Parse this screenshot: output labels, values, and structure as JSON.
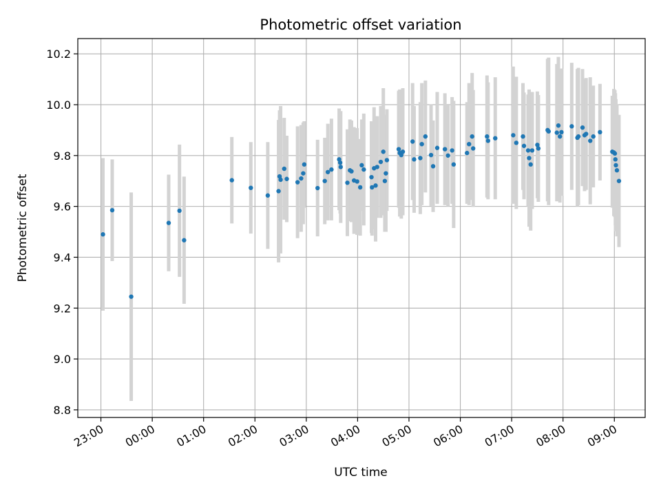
{
  "chart_data": {
    "type": "scatter",
    "title": "Photometric offset variation",
    "xlabel": "UTC time",
    "ylabel": "Photometric offset",
    "x_unit": "hours after 23:00 UTC",
    "xlim": [
      -0.45,
      10.6
    ],
    "ylim": [
      8.77,
      10.26
    ],
    "yticks": [
      8.8,
      9.0,
      9.2,
      9.4,
      9.6,
      9.8,
      10.0,
      10.2
    ],
    "ytick_labels": [
      "8.8",
      "9.0",
      "9.2",
      "9.4",
      "9.6",
      "9.8",
      "10.0",
      "10.2"
    ],
    "xticks": [
      0,
      1,
      2,
      3,
      4,
      5,
      6,
      7,
      8,
      9,
      10
    ],
    "xtick_labels": [
      "23:00",
      "00:00",
      "01:00",
      "02:00",
      "03:00",
      "04:00",
      "05:00",
      "06:00",
      "07:00",
      "08:00",
      "09:00"
    ],
    "grid": true,
    "marker_color": "#1f77b4",
    "errorbar_color": "#d3d3d3",
    "points": [
      [
        0.04,
        9.49,
        0.3
      ],
      [
        0.22,
        9.585,
        0.2
      ],
      [
        0.59,
        9.245,
        0.41
      ],
      [
        1.32,
        9.535,
        0.19
      ],
      [
        1.53,
        9.583,
        0.26
      ],
      [
        1.62,
        9.467,
        0.25
      ],
      [
        2.55,
        9.703,
        0.17
      ],
      [
        2.92,
        9.673,
        0.18
      ],
      [
        3.25,
        9.643,
        0.21
      ],
      [
        3.46,
        9.66,
        0.28
      ],
      [
        3.48,
        9.718,
        0.26
      ],
      [
        3.5,
        9.705,
        0.29
      ],
      [
        3.57,
        9.748,
        0.2
      ],
      [
        3.62,
        9.708,
        0.17
      ],
      [
        3.83,
        9.695,
        0.22
      ],
      [
        3.9,
        9.71,
        0.21
      ],
      [
        3.94,
        9.73,
        0.2
      ],
      [
        3.96,
        9.765,
        0.17
      ],
      [
        4.22,
        9.672,
        0.19
      ],
      [
        4.36,
        9.7,
        0.17
      ],
      [
        4.42,
        9.735,
        0.19
      ],
      [
        4.49,
        9.745,
        0.2
      ],
      [
        4.64,
        9.785,
        0.2
      ],
      [
        4.66,
        9.772,
        0.2
      ],
      [
        4.67,
        9.755,
        0.22
      ],
      [
        4.8,
        9.693,
        0.21
      ],
      [
        4.85,
        9.742,
        0.2
      ],
      [
        4.88,
        9.738,
        0.2
      ],
      [
        4.93,
        9.702,
        0.21
      ],
      [
        4.99,
        9.698,
        0.21
      ],
      [
        5.05,
        9.675,
        0.19
      ],
      [
        5.08,
        9.762,
        0.18
      ],
      [
        5.12,
        9.745,
        0.22
      ],
      [
        5.27,
        9.715,
        0.22
      ],
      [
        5.28,
        9.675,
        0.19
      ],
      [
        5.32,
        9.75,
        0.24
      ],
      [
        5.35,
        9.682,
        0.22
      ],
      [
        5.38,
        9.755,
        0.2
      ],
      [
        5.45,
        9.775,
        0.22
      ],
      [
        5.5,
        9.815,
        0.25
      ],
      [
        5.53,
        9.7,
        0.2
      ],
      [
        5.55,
        9.73,
        0.23
      ],
      [
        5.57,
        9.782,
        0.2
      ],
      [
        5.8,
        9.825,
        0.23
      ],
      [
        5.82,
        9.81,
        0.25
      ],
      [
        5.85,
        9.802,
        0.25
      ],
      [
        5.88,
        9.815,
        0.25
      ],
      [
        6.07,
        9.855,
        0.23
      ],
      [
        6.1,
        9.785,
        0.21
      ],
      [
        6.22,
        9.79,
        0.22
      ],
      [
        6.25,
        9.845,
        0.24
      ],
      [
        6.32,
        9.875,
        0.22
      ],
      [
        6.43,
        9.802,
        0.2
      ],
      [
        6.47,
        9.758,
        0.18
      ],
      [
        6.55,
        9.83,
        0.22
      ],
      [
        6.7,
        9.825,
        0.22
      ],
      [
        6.76,
        9.8,
        0.2
      ],
      [
        6.84,
        9.82,
        0.21
      ],
      [
        6.87,
        9.765,
        0.25
      ],
      [
        7.13,
        9.81,
        0.2
      ],
      [
        7.17,
        9.845,
        0.24
      ],
      [
        7.23,
        9.875,
        0.25
      ],
      [
        7.25,
        9.828,
        0.23
      ],
      [
        7.52,
        9.875,
        0.24
      ],
      [
        7.54,
        9.858,
        0.23
      ],
      [
        7.68,
        9.868,
        0.24
      ],
      [
        8.03,
        9.88,
        0.27
      ],
      [
        8.09,
        9.85,
        0.26
      ],
      [
        8.22,
        9.875,
        0.21
      ],
      [
        8.24,
        9.838,
        0.21
      ],
      [
        8.32,
        9.82,
        0.22
      ],
      [
        8.34,
        9.79,
        0.27
      ],
      [
        8.37,
        9.765,
        0.26
      ],
      [
        8.4,
        9.82,
        0.23
      ],
      [
        8.5,
        9.842,
        0.21
      ],
      [
        8.52,
        9.828,
        0.21
      ],
      [
        8.7,
        9.9,
        0.28
      ],
      [
        8.72,
        9.895,
        0.29
      ],
      [
        8.88,
        9.89,
        0.27
      ],
      [
        8.91,
        9.918,
        0.27
      ],
      [
        8.94,
        9.875,
        0.26
      ],
      [
        8.97,
        9.892,
        0.25
      ],
      [
        9.17,
        9.915,
        0.25
      ],
      [
        9.28,
        9.87,
        0.27
      ],
      [
        9.3,
        9.875,
        0.27
      ],
      [
        9.38,
        9.91,
        0.23
      ],
      [
        9.42,
        9.88,
        0.22
      ],
      [
        9.45,
        9.885,
        0.22
      ],
      [
        9.53,
        9.858,
        0.25
      ],
      [
        9.59,
        9.875,
        0.2
      ],
      [
        9.72,
        9.892,
        0.19
      ],
      [
        9.96,
        9.815,
        0.22
      ],
      [
        9.99,
        9.812,
        0.25
      ],
      [
        10.01,
        9.808,
        0.25
      ],
      [
        10.02,
        9.785,
        0.26
      ],
      [
        10.03,
        9.762,
        0.26
      ],
      [
        10.05,
        9.742,
        0.26
      ],
      [
        10.09,
        9.7,
        0.26
      ]
    ]
  }
}
